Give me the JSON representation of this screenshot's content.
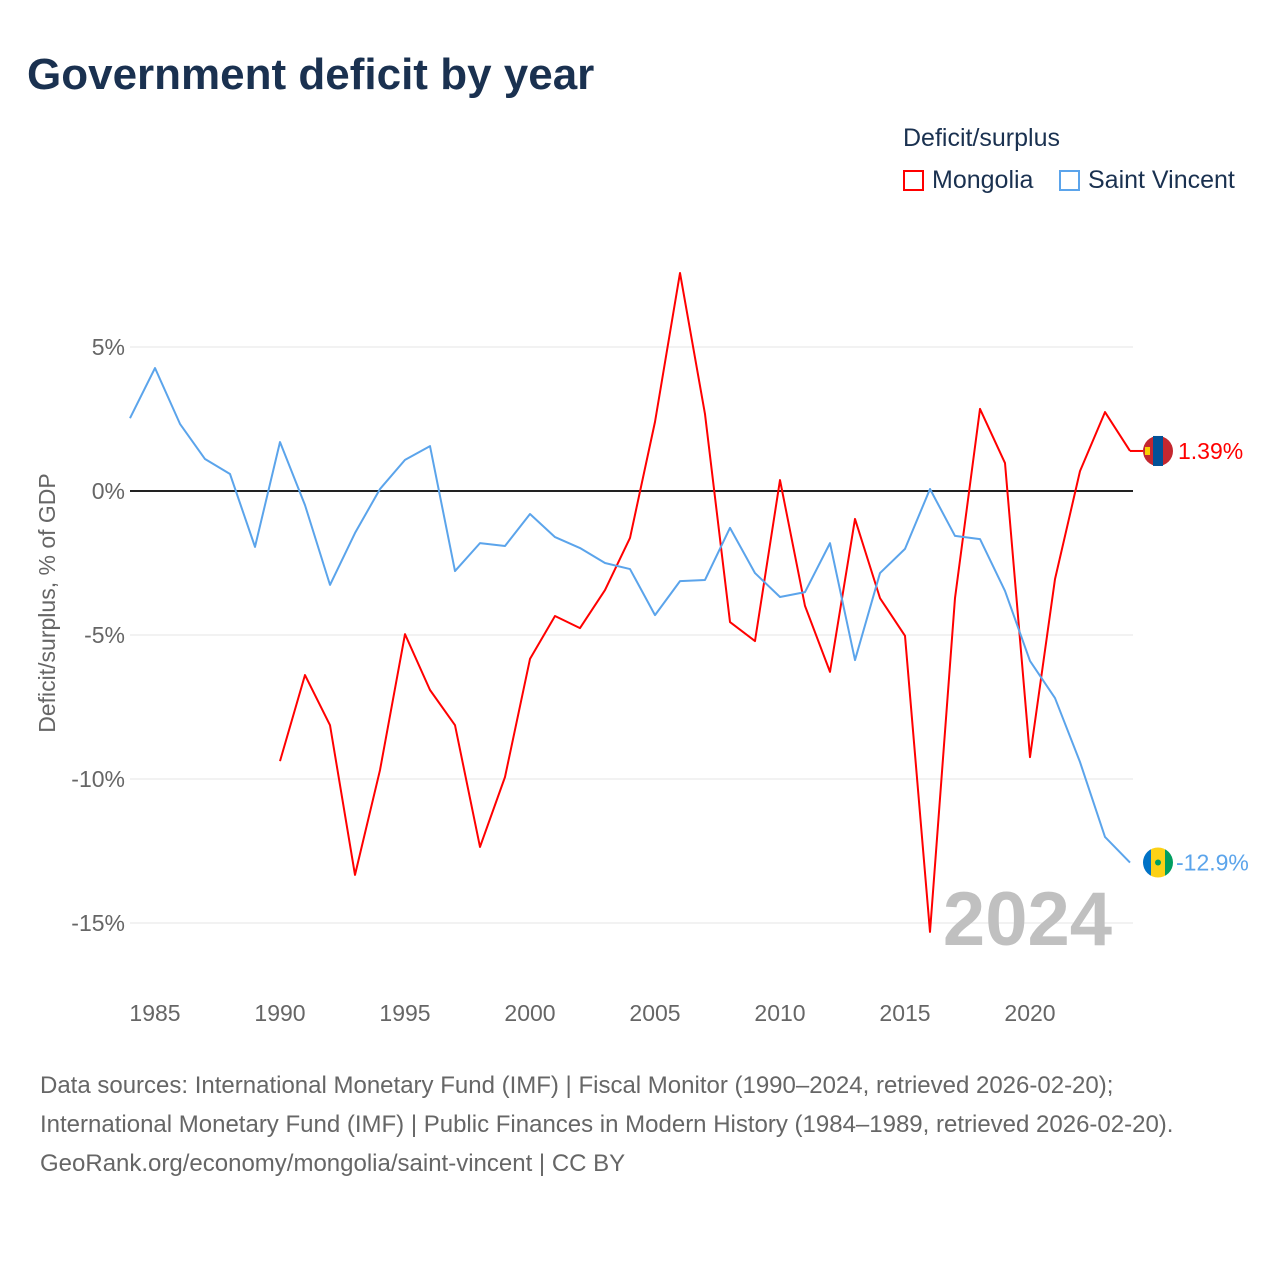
{
  "title": "Government deficit by year",
  "legend": {
    "title": "Deficit/surplus",
    "items": [
      {
        "label": "Mongolia",
        "color": "#ff0000"
      },
      {
        "label": "Saint Vincent",
        "color": "#5ba4eb"
      }
    ]
  },
  "watermark_year": "2024",
  "end_labels": {
    "mongolia": "1.39%",
    "saint_vincent": "-12.9%"
  },
  "source_lines": [
    "Data sources: International Monetary Fund (IMF) | Fiscal Monitor (1990–2024, retrieved 2026-02-20); International Monetary Fund (IMF) | Public Finances in Modern History (1984–1989, retrieved 2026-02-20).",
    "GeoRank.org/economy/mongolia/saint-vincent | CC BY"
  ],
  "chart_data": {
    "type": "line",
    "title": "Government deficit by year",
    "xlabel": "",
    "ylabel": "Deficit/surplus, % of GDP",
    "xlim": [
      1984,
      2024
    ],
    "ylim": [
      -17,
      8.5
    ],
    "xticks": [
      1985,
      1990,
      1995,
      2000,
      2005,
      2010,
      2015,
      2020
    ],
    "yticks": [
      {
        "v": 5,
        "label": "5%"
      },
      {
        "v": 0,
        "label": "0%"
      },
      {
        "v": -5,
        "label": "-5%"
      },
      {
        "v": -10,
        "label": "-10%"
      },
      {
        "v": -15,
        "label": "-15%"
      }
    ],
    "grid": true,
    "legend_position": "top-right",
    "series": [
      {
        "name": "Mongolia",
        "color": "#ff0000",
        "start": 1990,
        "values": [
          -9.38,
          -6.39,
          -8.13,
          -13.33,
          -9.69,
          -4.97,
          -6.91,
          -8.13,
          -12.36,
          -9.93,
          -5.83,
          -4.34,
          -4.76,
          -3.44,
          -1.63,
          2.4,
          7.57,
          2.67,
          -4.55,
          -5.21,
          0.38,
          -3.99,
          -6.28,
          -0.97,
          -3.72,
          -5.03,
          -15.31,
          -3.72,
          2.85,
          0.97,
          -9.24,
          -3.06,
          0.69,
          2.74,
          1.39
        ]
      },
      {
        "name": "Saint Vincent",
        "color": "#5ba4eb",
        "start": 1984,
        "values": [
          2.53,
          4.27,
          2.33,
          1.11,
          0.59,
          -1.94,
          1.7,
          -0.49,
          -3.26,
          -1.46,
          0.07,
          1.08,
          1.56,
          -2.78,
          -1.81,
          -1.91,
          -0.8,
          -1.6,
          -1.98,
          -2.5,
          -2.71,
          -4.31,
          -3.13,
          -3.09,
          -1.28,
          -2.85,
          -3.68,
          -3.51,
          -1.81,
          -5.87,
          -2.85,
          -2.01,
          0.07,
          -1.56,
          -1.67,
          -3.47,
          -5.9,
          -7.19,
          -9.41,
          -12.01,
          -12.9
        ]
      }
    ]
  }
}
